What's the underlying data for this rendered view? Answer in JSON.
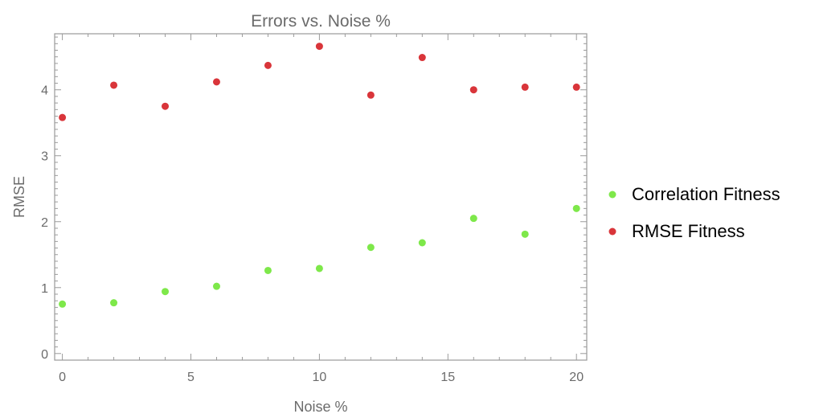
{
  "chart_data": {
    "type": "scatter",
    "title": "Errors vs. Noise %",
    "xlabel": "Noise %",
    "ylabel": "RMSE",
    "xlim": [
      -0.3,
      20.4
    ],
    "ylim": [
      -0.1,
      4.85
    ],
    "xticks": [
      0,
      5,
      10,
      15,
      20
    ],
    "yticks": [
      0,
      1,
      2,
      3,
      4
    ],
    "grid": false,
    "legend_position": "right",
    "series": [
      {
        "name": "Correlation Fitness",
        "color": "#7ee84a",
        "x": [
          0,
          2,
          4,
          6,
          8,
          10,
          12,
          14,
          16,
          18,
          20
        ],
        "y": [
          0.75,
          0.77,
          0.94,
          1.02,
          1.26,
          1.29,
          1.61,
          1.68,
          2.05,
          1.81,
          2.2
        ]
      },
      {
        "name": "RMSE Fitness",
        "color": "#d9353a",
        "x": [
          0,
          2,
          4,
          6,
          8,
          10,
          12,
          14,
          16,
          18,
          20
        ],
        "y": [
          3.58,
          4.07,
          3.75,
          4.12,
          4.37,
          4.66,
          3.92,
          4.49,
          4.0,
          4.04,
          4.04
        ]
      }
    ]
  }
}
